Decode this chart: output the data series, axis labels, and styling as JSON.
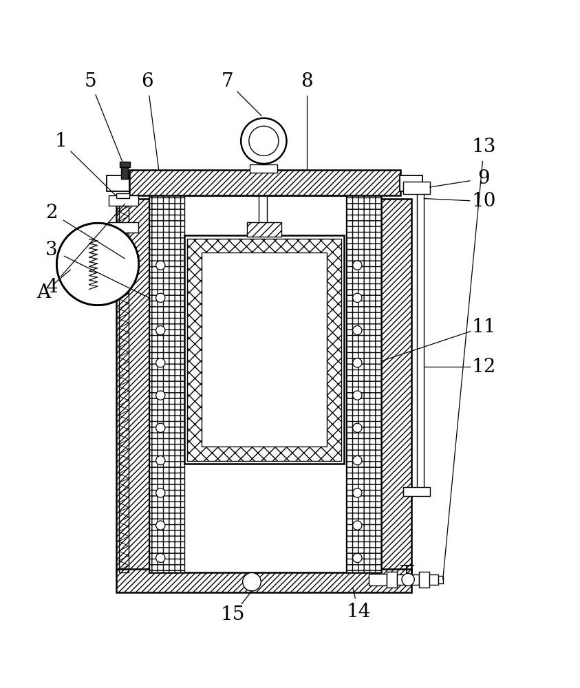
{
  "bg_color": "#ffffff",
  "line_color": "#000000",
  "fig_width": 8.43,
  "fig_height": 10.0,
  "font_size": 20,
  "lw_main": 1.8,
  "lw_thin": 1.0,
  "lw_med": 1.3
}
